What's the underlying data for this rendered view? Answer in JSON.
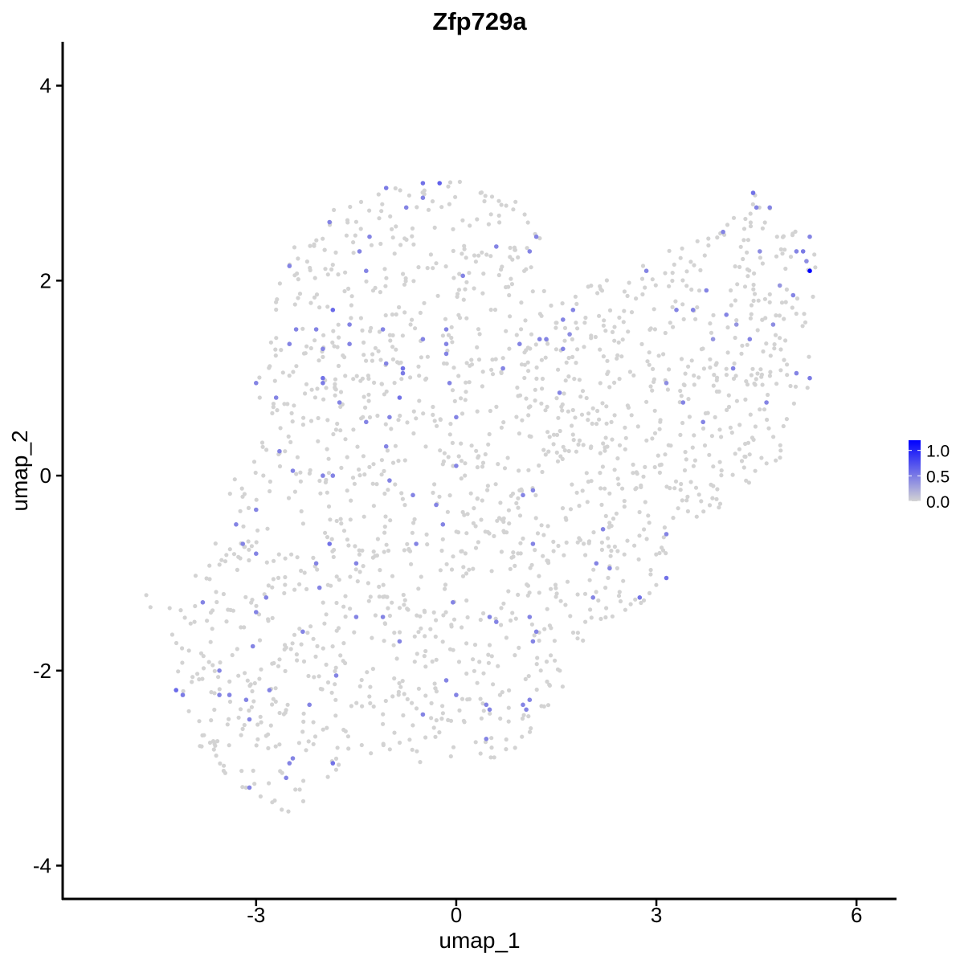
{
  "chart_data": {
    "type": "scatter",
    "title": "Zfp729a",
    "xlabel": "umap_1",
    "ylabel": "umap_2",
    "xlim": [
      -5.9,
      6.6
    ],
    "ylim": [
      -4.35,
      4.45
    ],
    "x_ticks": [
      -3,
      0,
      3,
      6
    ],
    "x_tick_labels": [
      "-3",
      "0",
      "3",
      "6"
    ],
    "y_ticks": [
      -4,
      -2,
      0,
      2,
      4
    ],
    "y_tick_labels": [
      "-4",
      "-2",
      "0",
      "2",
      "4"
    ],
    "grid": false,
    "legend": {
      "position": "right",
      "type": "color-gradient",
      "ticks": [
        0.0,
        0.5,
        1.0
      ],
      "tick_labels": [
        "0.0",
        "0.5",
        "1.0"
      ],
      "min": 0.0,
      "max": 1.2
    },
    "colors": {
      "low": "#d3d3d3",
      "high": "#0000ff"
    },
    "background_points": {
      "description": "about 1700 cells with expression 0.0, spread over the UMAP embedding",
      "value": 0.0,
      "outline": [
        [
          -4.75,
          -1.15
        ],
        [
          -4.2,
          -1.3
        ],
        [
          -3.6,
          -0.6
        ],
        [
          -3.2,
          0.2
        ],
        [
          -3.0,
          0.9
        ],
        [
          -2.8,
          1.6
        ],
        [
          -2.55,
          2.25
        ],
        [
          -2.1,
          2.65
        ],
        [
          -1.6,
          2.8
        ],
        [
          -1.0,
          2.95
        ],
        [
          -0.4,
          3.0
        ],
        [
          0.2,
          3.05
        ],
        [
          0.9,
          2.85
        ],
        [
          1.3,
          2.55
        ],
        [
          1.2,
          2.1
        ],
        [
          1.4,
          1.75
        ],
        [
          2.0,
          1.95
        ],
        [
          2.8,
          2.2
        ],
        [
          3.3,
          2.4
        ],
        [
          3.9,
          2.5
        ],
        [
          4.5,
          2.95
        ],
        [
          5.05,
          2.55
        ],
        [
          5.45,
          2.2
        ],
        [
          5.3,
          1.4
        ],
        [
          5.25,
          0.6
        ],
        [
          4.9,
          0.15
        ],
        [
          4.35,
          -0.15
        ],
        [
          3.5,
          -0.55
        ],
        [
          3.1,
          -1.05
        ],
        [
          2.6,
          -1.5
        ],
        [
          2.0,
          -1.55
        ],
        [
          1.6,
          -2.2
        ],
        [
          1.0,
          -2.8
        ],
        [
          0.3,
          -2.95
        ],
        [
          -0.5,
          -2.95
        ],
        [
          -1.3,
          -2.85
        ],
        [
          -2.0,
          -3.2
        ],
        [
          -2.4,
          -3.5
        ],
        [
          -3.0,
          -3.3
        ],
        [
          -3.6,
          -3.0
        ],
        [
          -4.1,
          -2.6
        ],
        [
          -4.2,
          -2.0
        ],
        [
          -4.4,
          -1.6
        ]
      ]
    },
    "expressing_cells": [
      {
        "x": 5.3,
        "y": 2.1,
        "v": 1.2
      },
      {
        "x": 4.45,
        "y": 2.9,
        "v": 0.55
      },
      {
        "x": 4.5,
        "y": 2.75,
        "v": 0.45
      },
      {
        "x": 4.7,
        "y": 2.75,
        "v": 0.45
      },
      {
        "x": 5.2,
        "y": 2.3,
        "v": 0.5
      },
      {
        "x": 5.1,
        "y": 2.3,
        "v": 0.45
      },
      {
        "x": 5.3,
        "y": 2.45,
        "v": 0.45
      },
      {
        "x": 4.0,
        "y": 2.5,
        "v": 0.45
      },
      {
        "x": 4.55,
        "y": 2.3,
        "v": 0.4
      },
      {
        "x": 5.25,
        "y": 2.2,
        "v": 0.4
      },
      {
        "x": 5.05,
        "y": 1.85,
        "v": 0.45
      },
      {
        "x": 4.85,
        "y": 1.95,
        "v": 0.35
      },
      {
        "x": 5.3,
        "y": 1.0,
        "v": 0.5
      },
      {
        "x": 5.1,
        "y": 1.05,
        "v": 0.45
      },
      {
        "x": 4.75,
        "y": 1.55,
        "v": 0.4
      },
      {
        "x": 4.65,
        "y": 0.75,
        "v": 0.45
      },
      {
        "x": 4.4,
        "y": 1.4,
        "v": 0.45
      },
      {
        "x": 4.05,
        "y": 1.65,
        "v": 0.45
      },
      {
        "x": 3.75,
        "y": 1.9,
        "v": 0.45
      },
      {
        "x": 3.85,
        "y": 1.4,
        "v": 0.35
      },
      {
        "x": 4.2,
        "y": 1.55,
        "v": 0.35
      },
      {
        "x": 4.15,
        "y": 1.1,
        "v": 0.45
      },
      {
        "x": 3.55,
        "y": 1.7,
        "v": 0.45
      },
      {
        "x": 3.3,
        "y": 1.7,
        "v": 0.45
      },
      {
        "x": 3.15,
        "y": 0.95,
        "v": 0.4
      },
      {
        "x": 3.4,
        "y": 0.75,
        "v": 0.45
      },
      {
        "x": 3.7,
        "y": 0.55,
        "v": 0.45
      },
      {
        "x": 2.85,
        "y": 2.1,
        "v": 0.45
      },
      {
        "x": 1.75,
        "y": 1.7,
        "v": 0.45
      },
      {
        "x": 1.6,
        "y": 1.6,
        "v": 0.45
      },
      {
        "x": 1.7,
        "y": 1.45,
        "v": 0.4
      },
      {
        "x": 1.35,
        "y": 1.4,
        "v": 0.45
      },
      {
        "x": 1.25,
        "y": 1.4,
        "v": 0.45
      },
      {
        "x": 1.6,
        "y": 1.3,
        "v": 0.45
      },
      {
        "x": 0.95,
        "y": 1.35,
        "v": 0.45
      },
      {
        "x": 0.7,
        "y": 1.1,
        "v": 0.45
      },
      {
        "x": 1.55,
        "y": 0.85,
        "v": 0.45
      },
      {
        "x": 1.1,
        "y": 2.3,
        "v": 0.45
      },
      {
        "x": 1.2,
        "y": 2.45,
        "v": 0.45
      },
      {
        "x": 0.6,
        "y": 2.35,
        "v": 0.45
      },
      {
        "x": 0.1,
        "y": 2.05,
        "v": 0.45
      },
      {
        "x": -0.25,
        "y": 3.0,
        "v": 0.65
      },
      {
        "x": -0.5,
        "y": 3.0,
        "v": 0.55
      },
      {
        "x": -0.75,
        "y": 2.75,
        "v": 0.45
      },
      {
        "x": -0.5,
        "y": 2.85,
        "v": 0.45
      },
      {
        "x": -1.05,
        "y": 2.95,
        "v": 0.5
      },
      {
        "x": -1.3,
        "y": 2.45,
        "v": 0.45
      },
      {
        "x": -1.45,
        "y": 2.3,
        "v": 0.45
      },
      {
        "x": -1.35,
        "y": 2.1,
        "v": 0.45
      },
      {
        "x": -1.9,
        "y": 2.6,
        "v": 0.45
      },
      {
        "x": -2.5,
        "y": 2.15,
        "v": 0.45
      },
      {
        "x": -2.5,
        "y": 1.35,
        "v": 0.45
      },
      {
        "x": -2.4,
        "y": 1.5,
        "v": 0.45
      },
      {
        "x": -2.0,
        "y": 1.3,
        "v": 0.45
      },
      {
        "x": -2.1,
        "y": 1.5,
        "v": 0.45
      },
      {
        "x": -1.6,
        "y": 1.55,
        "v": 0.45
      },
      {
        "x": -1.6,
        "y": 1.35,
        "v": 0.45
      },
      {
        "x": -1.85,
        "y": 1.7,
        "v": 0.6
      },
      {
        "x": -1.1,
        "y": 1.5,
        "v": 0.45
      },
      {
        "x": -1.05,
        "y": 1.15,
        "v": 0.45
      },
      {
        "x": -0.8,
        "y": 1.1,
        "v": 0.55
      },
      {
        "x": -0.8,
        "y": 1.05,
        "v": 0.5
      },
      {
        "x": -0.85,
        "y": 0.8,
        "v": 0.55
      },
      {
        "x": -0.5,
        "y": 1.4,
        "v": 0.45
      },
      {
        "x": -0.15,
        "y": 1.5,
        "v": 0.45
      },
      {
        "x": -0.15,
        "y": 1.35,
        "v": 0.45
      },
      {
        "x": -0.15,
        "y": 1.25,
        "v": 0.45
      },
      {
        "x": -0.1,
        "y": 0.95,
        "v": 0.45
      },
      {
        "x": 0.0,
        "y": 0.6,
        "v": 0.45
      },
      {
        "x": -2.0,
        "y": 1.0,
        "v": 0.55
      },
      {
        "x": -2.0,
        "y": 0.95,
        "v": 0.5
      },
      {
        "x": -1.75,
        "y": 0.75,
        "v": 0.45
      },
      {
        "x": -1.35,
        "y": 0.55,
        "v": 0.45
      },
      {
        "x": -1.0,
        "y": 0.6,
        "v": 0.45
      },
      {
        "x": -3.0,
        "y": 0.95,
        "v": 0.45
      },
      {
        "x": -2.7,
        "y": 0.8,
        "v": 0.45
      },
      {
        "x": -2.65,
        "y": 0.25,
        "v": 0.45
      },
      {
        "x": -2.45,
        "y": 0.05,
        "v": 0.45
      },
      {
        "x": -1.85,
        "y": 0.0,
        "v": 0.45
      },
      {
        "x": -2.0,
        "y": 0.0,
        "v": 0.45
      },
      {
        "x": -1.05,
        "y": 0.3,
        "v": 0.45
      },
      {
        "x": -1.0,
        "y": -0.05,
        "v": 0.45
      },
      {
        "x": -0.65,
        "y": -0.2,
        "v": 0.45
      },
      {
        "x": 0.0,
        "y": 0.1,
        "v": 0.45
      },
      {
        "x": -0.3,
        "y": -0.3,
        "v": 0.45
      },
      {
        "x": -0.2,
        "y": -0.5,
        "v": 0.45
      },
      {
        "x": -0.6,
        "y": -0.7,
        "v": 0.45
      },
      {
        "x": 1.15,
        "y": -0.15,
        "v": 0.45
      },
      {
        "x": 1.0,
        "y": -0.2,
        "v": 0.45
      },
      {
        "x": 1.15,
        "y": -0.7,
        "v": 0.45
      },
      {
        "x": -3.0,
        "y": -0.35,
        "v": 0.45
      },
      {
        "x": -3.3,
        "y": -0.5,
        "v": 0.45
      },
      {
        "x": -3.2,
        "y": -0.7,
        "v": 0.45
      },
      {
        "x": -3.0,
        "y": -0.8,
        "v": 0.45
      },
      {
        "x": -1.9,
        "y": -0.7,
        "v": 0.55
      },
      {
        "x": -2.1,
        "y": -0.9,
        "v": 0.45
      },
      {
        "x": -2.05,
        "y": -1.15,
        "v": 0.45
      },
      {
        "x": -2.85,
        "y": -1.25,
        "v": 0.45
      },
      {
        "x": -3.0,
        "y": -1.4,
        "v": 0.45
      },
      {
        "x": -3.8,
        "y": -1.3,
        "v": 0.45
      },
      {
        "x": -1.5,
        "y": -0.9,
        "v": 0.45
      },
      {
        "x": -1.5,
        "y": -1.45,
        "v": 0.45
      },
      {
        "x": -1.1,
        "y": -1.45,
        "v": 0.45
      },
      {
        "x": -0.85,
        "y": -1.7,
        "v": 0.45
      },
      {
        "x": -0.05,
        "y": -1.3,
        "v": 0.45
      },
      {
        "x": 0.5,
        "y": -1.45,
        "v": 0.45
      },
      {
        "x": 1.1,
        "y": -1.45,
        "v": 0.45
      },
      {
        "x": 1.2,
        "y": -1.6,
        "v": 0.45
      },
      {
        "x": 1.15,
        "y": -1.7,
        "v": 0.45
      },
      {
        "x": 0.6,
        "y": -1.5,
        "v": 0.45
      },
      {
        "x": 2.2,
        "y": -0.55,
        "v": 0.45
      },
      {
        "x": 2.1,
        "y": -0.9,
        "v": 0.45
      },
      {
        "x": 2.3,
        "y": -0.95,
        "v": 0.45
      },
      {
        "x": 2.05,
        "y": -1.25,
        "v": 0.45
      },
      {
        "x": 2.75,
        "y": -1.25,
        "v": 0.55
      },
      {
        "x": 3.15,
        "y": -0.6,
        "v": 0.45
      },
      {
        "x": 3.15,
        "y": -1.05,
        "v": 0.55
      },
      {
        "x": -2.3,
        "y": -1.6,
        "v": 0.45
      },
      {
        "x": -1.8,
        "y": -2.05,
        "v": 0.45
      },
      {
        "x": -2.2,
        "y": -2.35,
        "v": 0.45
      },
      {
        "x": -3.55,
        "y": -2.0,
        "v": 0.45
      },
      {
        "x": -3.55,
        "y": -2.25,
        "v": 0.45
      },
      {
        "x": -3.4,
        "y": -2.25,
        "v": 0.45
      },
      {
        "x": -3.15,
        "y": -2.3,
        "v": 0.45
      },
      {
        "x": -3.1,
        "y": -2.5,
        "v": 0.45
      },
      {
        "x": -3.05,
        "y": -1.75,
        "v": 0.45
      },
      {
        "x": -2.8,
        "y": -2.2,
        "v": 0.45
      },
      {
        "x": -4.2,
        "y": -2.2,
        "v": 0.6
      },
      {
        "x": -4.1,
        "y": -2.25,
        "v": 0.5
      },
      {
        "x": -2.5,
        "y": -2.95,
        "v": 0.45
      },
      {
        "x": -2.45,
        "y": -2.9,
        "v": 0.45
      },
      {
        "x": -2.55,
        "y": -3.1,
        "v": 0.45
      },
      {
        "x": -3.1,
        "y": -3.2,
        "v": 0.45
      },
      {
        "x": -1.85,
        "y": -2.95,
        "v": 0.55
      },
      {
        "x": -0.5,
        "y": -2.45,
        "v": 0.45
      },
      {
        "x": -0.15,
        "y": -2.1,
        "v": 0.45
      },
      {
        "x": 0.0,
        "y": -2.25,
        "v": 0.45
      },
      {
        "x": 0.45,
        "y": -2.35,
        "v": 0.45
      },
      {
        "x": 0.5,
        "y": -2.4,
        "v": 0.45
      },
      {
        "x": 0.45,
        "y": -2.7,
        "v": 0.45
      },
      {
        "x": 1.1,
        "y": -2.3,
        "v": 0.45
      },
      {
        "x": 1.0,
        "y": -2.35,
        "v": 0.45
      },
      {
        "x": 1.05,
        "y": -2.4,
        "v": 0.45
      }
    ]
  }
}
